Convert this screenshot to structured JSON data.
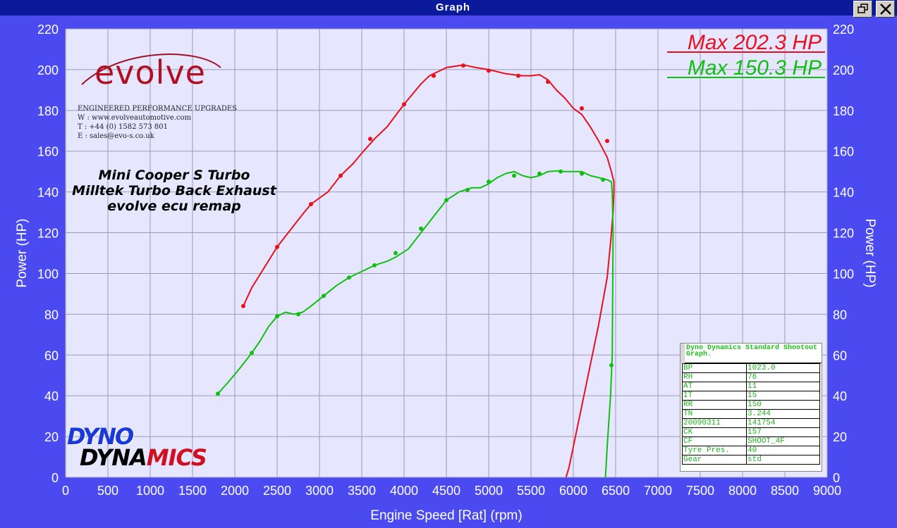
{
  "window": {
    "title": "Graph"
  },
  "brand": {
    "name": "evolve",
    "tagline": "ENGINEERED PERFORMANCE UPGRADES",
    "contact": [
      "W : www.evolveautomotive.com",
      "T : +44 (0) 1582 573 801",
      "E : sales@evo-s.co.uk"
    ]
  },
  "car_description": [
    "Mini Cooper S Turbo",
    "Milltek Turbo Back Exhaust",
    "evolve ecu remap"
  ],
  "dyno_logo": {
    "line1": "DYNO",
    "line2a": "DYNA",
    "line2b": "MICS"
  },
  "info_table": {
    "header": "Dyno Dynamics Standard Shootout Graph.",
    "rows": [
      [
        "BP",
        "1023.0"
      ],
      [
        "RH",
        "76"
      ],
      [
        "AT",
        "11"
      ],
      [
        "IT",
        "15"
      ],
      [
        "RR",
        "150"
      ],
      [
        "TN",
        "3.244"
      ],
      [
        "20090311",
        "141754"
      ],
      [
        "CK",
        "157"
      ],
      [
        "CF",
        "SHOOT_4F"
      ],
      [
        "Tyre Pres.",
        "40"
      ],
      [
        "Gear",
        "std"
      ]
    ]
  },
  "colors": {
    "background": "#4a4af0",
    "plot_area": "#e6e6ff",
    "grid": "#9b9bb4",
    "run1": "#e8101c",
    "run2": "#10c010"
  },
  "chart_data": {
    "type": "line",
    "xlabel": "Engine Speed [Rat] (rpm)",
    "ylabel": "Power (HP)",
    "ylabel_right": "Power (HP)",
    "xlim": [
      0,
      9000
    ],
    "ylim": [
      0,
      220
    ],
    "xticks": [
      0,
      500,
      1000,
      1500,
      2000,
      2500,
      3000,
      3500,
      4000,
      4500,
      5000,
      5500,
      6000,
      6500,
      7000,
      7500,
      8000,
      8500,
      9000
    ],
    "yticks": [
      0,
      20,
      40,
      60,
      80,
      100,
      120,
      140,
      160,
      180,
      200,
      220
    ],
    "grid": true,
    "legend_position": "top-right",
    "series": [
      {
        "name": "Max 202.3 HP",
        "color": "#e8101c",
        "x": [
          2100,
          2200,
          2350,
          2500,
          2650,
          2800,
          2900,
          3100,
          3250,
          3400,
          3500,
          3650,
          3800,
          4000,
          4200,
          4300,
          4500,
          4700,
          4850,
          5000,
          5200,
          5400,
          5500,
          5600,
          5700,
          5800,
          5900,
          6000,
          6100,
          6200,
          6300,
          6400,
          6450,
          6480,
          6480,
          6470,
          6440,
          6400,
          6300,
          6200,
          6100,
          6000,
          5950,
          5900,
          5880
        ],
        "y": [
          84,
          93,
          103,
          113,
          121,
          129,
          134,
          140,
          148,
          154,
          159,
          166,
          172,
          183,
          193,
          197,
          201,
          202.3,
          201,
          200,
          198,
          197,
          197,
          197.5,
          195,
          190,
          186,
          181,
          178,
          172,
          165,
          157,
          150,
          145,
          140,
          130,
          115,
          98,
          75,
          55,
          35,
          15,
          5,
          -2,
          -5
        ],
        "markers_x": [
          2100,
          2500,
          2900,
          3250,
          3600,
          4000,
          4350,
          4700,
          5000,
          5350,
          5700,
          6100,
          6400
        ],
        "markers_y": [
          84,
          113,
          134,
          148,
          166,
          183,
          197,
          202,
          199.5,
          197,
          194,
          181,
          165
        ]
      },
      {
        "name": "Max 150.3 HP",
        "color": "#10c010",
        "x": [
          1800,
          1950,
          2050,
          2200,
          2300,
          2400,
          2500,
          2600,
          2700,
          2800,
          2900,
          3050,
          3200,
          3350,
          3500,
          3650,
          3800,
          3900,
          4050,
          4200,
          4350,
          4500,
          4650,
          4800,
          4900,
          5000,
          5100,
          5200,
          5300,
          5400,
          5500,
          5600,
          5700,
          5800,
          5900,
          6000,
          6100,
          6200,
          6300,
          6400,
          6450,
          6460,
          6470,
          6460,
          6440,
          6400,
          6380,
          6370
        ],
        "y": [
          41,
          48,
          53,
          61,
          67,
          74,
          79,
          81,
          80,
          81,
          84,
          89,
          94,
          98,
          101,
          104,
          106,
          108,
          112,
          120,
          128,
          136,
          140,
          142,
          142,
          144,
          147,
          149,
          150,
          148,
          147,
          148,
          150,
          150.3,
          150,
          150,
          150,
          148,
          147,
          146,
          145,
          140,
          120,
          60,
          40,
          15,
          0,
          -3
        ],
        "markers_x": [
          1800,
          2200,
          2500,
          2750,
          3050,
          3350,
          3650,
          3900,
          4200,
          4500,
          4750,
          5000,
          5300,
          5600,
          5850,
          6100,
          6350,
          6450
        ],
        "markers_y": [
          41,
          61,
          79,
          80,
          89,
          98,
          104,
          110,
          122,
          136,
          141,
          145,
          148,
          149,
          150,
          149,
          146,
          55
        ]
      }
    ]
  }
}
